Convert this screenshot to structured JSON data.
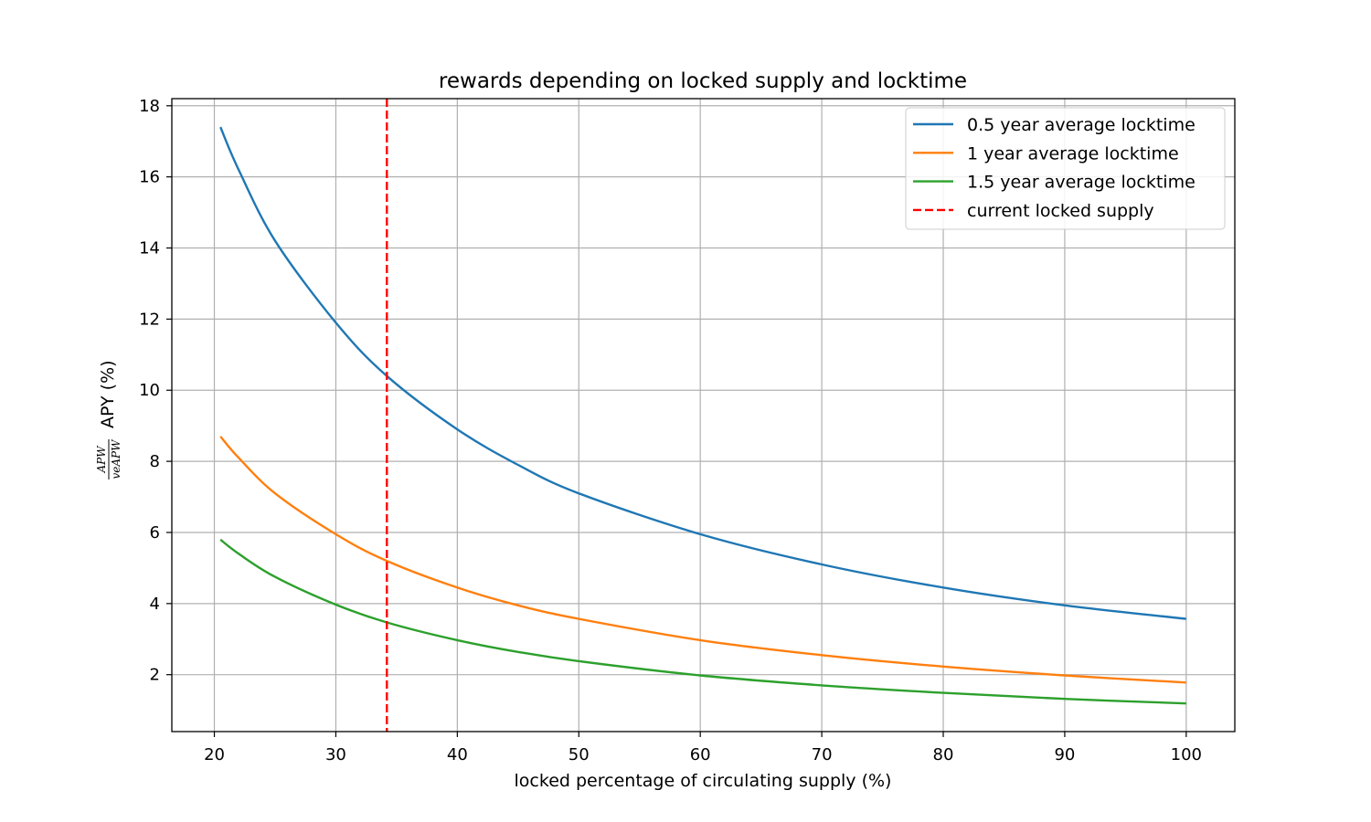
{
  "chart_data": {
    "type": "line",
    "title": "rewards depending on locked supply and locktime",
    "xlabel": "locked percentage of circulating supply (%)",
    "ylabel": {
      "fraction_numerator": "APW",
      "fraction_denominator": "veAPW",
      "text": "APY (%)"
    },
    "xlim": [
      16.5,
      104
    ],
    "ylim": [
      0.4,
      18.2
    ],
    "xticks": [
      20,
      30,
      40,
      50,
      60,
      70,
      80,
      90,
      100
    ],
    "yticks": [
      2,
      4,
      6,
      8,
      10,
      12,
      14,
      16,
      18
    ],
    "grid": true,
    "legend_position": "upper right",
    "series": [
      {
        "name": "0.5 year average locktime",
        "color": "#1f77b4",
        "style": "solid",
        "x": [
          20.5,
          22,
          25,
          30,
          34.2,
          40,
          45,
          50,
          60,
          70,
          80,
          90,
          100
        ],
        "y": [
          17.4,
          16.2,
          14.2,
          11.9,
          10.4,
          8.9,
          7.9,
          7.1,
          5.95,
          5.1,
          4.45,
          3.95,
          3.57
        ]
      },
      {
        "name": "1 year average locktime",
        "color": "#ff7f0e",
        "style": "solid",
        "x": [
          20.5,
          22,
          25,
          30,
          34.2,
          40,
          45,
          50,
          60,
          70,
          80,
          90,
          100
        ],
        "y": [
          8.7,
          8.1,
          7.1,
          5.95,
          5.2,
          4.45,
          3.95,
          3.57,
          2.97,
          2.55,
          2.23,
          1.98,
          1.78
        ]
      },
      {
        "name": "1.5 year average locktime",
        "color": "#2ca02c",
        "style": "solid",
        "x": [
          20.5,
          22,
          25,
          30,
          34.2,
          40,
          45,
          50,
          60,
          70,
          80,
          90,
          100
        ],
        "y": [
          5.8,
          5.4,
          4.75,
          3.97,
          3.47,
          2.97,
          2.64,
          2.38,
          1.98,
          1.7,
          1.49,
          1.32,
          1.19
        ]
      }
    ],
    "vlines": [
      {
        "name": "current locked supply",
        "x": 34.2,
        "color": "#ff0000",
        "style": "dashed"
      }
    ]
  }
}
